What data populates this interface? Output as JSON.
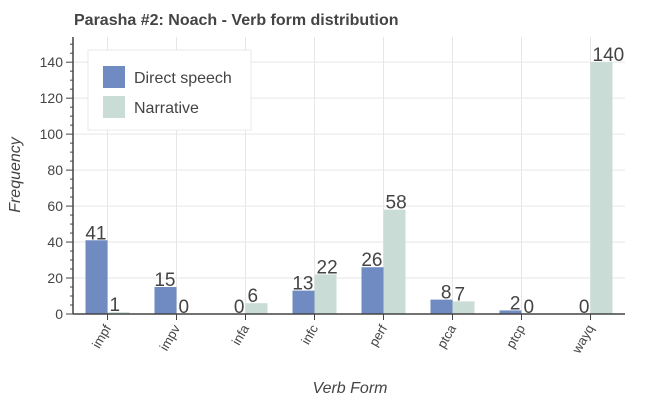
{
  "chart_data": {
    "type": "bar",
    "title": "Parasha #2: Noach - Verb form distribution",
    "xlabel": "Verb Form",
    "ylabel": "Frequency",
    "categories": [
      "impf",
      "impv",
      "infa",
      "infc",
      "perf",
      "ptca",
      "ptcp",
      "wayq"
    ],
    "series": [
      {
        "name": "Direct speech",
        "color": "#6f8bc1",
        "values": [
          41,
          15,
          0,
          13,
          26,
          8,
          2,
          0
        ]
      },
      {
        "name": "Narrative",
        "color": "#c9dcd5",
        "values": [
          1,
          0,
          6,
          22,
          58,
          7,
          0,
          140
        ]
      }
    ],
    "ylim": [
      0,
      154
    ],
    "yticks": [
      0,
      20,
      40,
      60,
      80,
      100,
      120,
      140
    ],
    "grid": true,
    "legend_position": "top-left",
    "tick_label_rotation": "45deg"
  }
}
